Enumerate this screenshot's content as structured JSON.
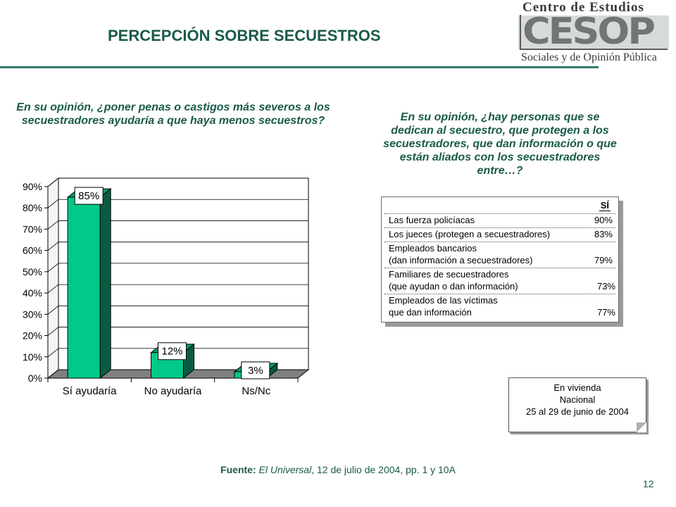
{
  "header": {
    "title": "PERCEPCIÓN SOBRE SECUESTROS",
    "logo": {
      "top_text": "Centro de Estudios",
      "mark": "CESOP",
      "bottom_text": "Sociales y de Opinión Pública"
    }
  },
  "left_question": "En su opinión, ¿poner penas o castigos más severos a los secuestradores ayudaría a que haya menos secuestros?",
  "right_question": "En su opinión, ¿hay personas que se dedican al secuestro, que protegen a los secuestradores, que dan información o que están aliados con los secuestradores entre…?",
  "chart_data": {
    "type": "bar",
    "categories": [
      "Sí ayudaría",
      "No ayudaría",
      "Ns/Nc"
    ],
    "values": [
      85,
      12,
      3
    ],
    "data_labels": [
      "85%",
      "12%",
      "3%"
    ],
    "y_ticks": [
      "0%",
      "10%",
      "20%",
      "30%",
      "40%",
      "50%",
      "60%",
      "70%",
      "80%",
      "90%"
    ],
    "ylim": [
      0,
      90
    ],
    "style": "3d",
    "bar_color": "#00c98a",
    "bar_side_color": "#0a5b42",
    "grid": true,
    "legend": false
  },
  "table": {
    "header": "SÍ",
    "rows": [
      {
        "lines": [
          "Las fuerza policíacas"
        ],
        "value": "90%"
      },
      {
        "lines": [
          "Los jueces (protegen a secuestradores)"
        ],
        "value": "83%"
      },
      {
        "lines": [
          "Empleados bancarios",
          "(dan información a secuestradores)"
        ],
        "value": "79%"
      },
      {
        "lines": [
          "Familiares de secuestradores",
          "(que ayudan o dan información)"
        ],
        "value": "73%"
      },
      {
        "lines": [
          "Empleados de las víctimas",
          "que dan información"
        ],
        "value": "77%"
      }
    ]
  },
  "note": {
    "line1": "En vivienda",
    "line2": "Nacional",
    "line3": "25 al 29 de junio de 2004"
  },
  "source": {
    "label": "Fuente:",
    "publication": "El Universal",
    "details": ", 12 de julio de 2004, pp. 1 y 10A"
  },
  "page_number": "12",
  "colors": {
    "accent": "#1a5a4a",
    "rule": "#2e7d6b"
  }
}
